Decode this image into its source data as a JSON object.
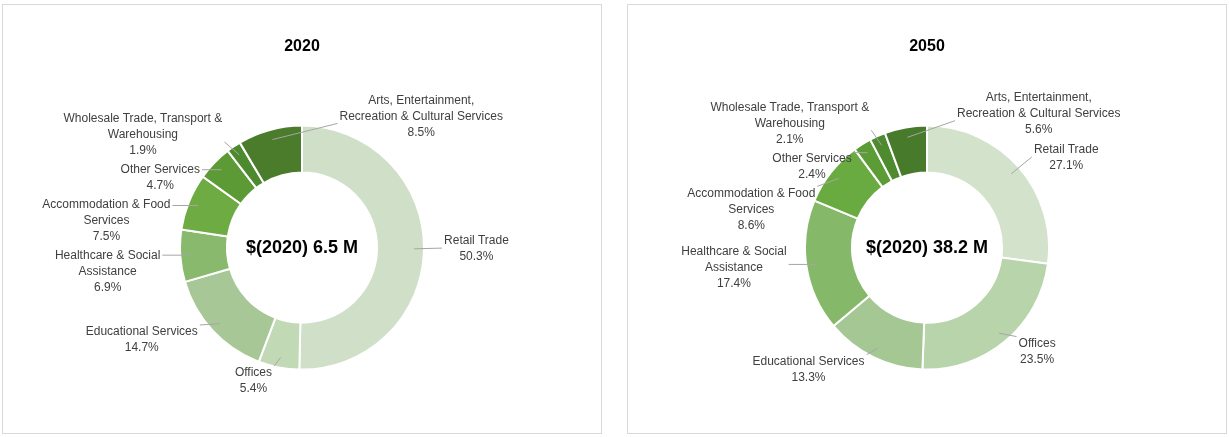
{
  "chart_data": [
    {
      "type": "donut",
      "title": "2020",
      "categories": [
        "Retail Trade",
        "Offices",
        "Educational Services",
        "Healthcare & Social Assistance",
        "Accommodation & Food Services",
        "Other Services",
        "Wholesale Trade, Transport & Warehousing",
        "Arts, Entertainment, Recreation & Cultural Services"
      ],
      "values": [
        50.3,
        5.4,
        14.7,
        6.9,
        7.5,
        4.7,
        1.9,
        8.5
      ],
      "colors": [
        "#d0e0c8",
        "#c2d9b6",
        "#a7c896",
        "#88b96c",
        "#6fab43",
        "#5b9a35",
        "#4d8a2e",
        "#4a7c2c"
      ],
      "value_labels": [
        "50.3%",
        "5.4%",
        "14.7%",
        "6.9%",
        "7.5%",
        "4.7%",
        "1.9%",
        "8.5%"
      ],
      "annotations": [
        "$(2020) 6.5 M"
      ]
    },
    {
      "type": "donut",
      "title": "2050",
      "categories": [
        "Retail Trade",
        "Offices",
        "Educational Services",
        "Healthcare & Social Assistance",
        "Accommodation & Food Services",
        "Other Services",
        "Wholesale Trade, Transport & Warehousing",
        "Arts, Entertainment, Recreation & Cultural Services"
      ],
      "values": [
        27.1,
        23.5,
        13.3,
        17.4,
        8.6,
        2.4,
        2.1,
        5.6
      ],
      "colors": [
        "#d3e2cb",
        "#b8d4aa",
        "#a5c794",
        "#86b86a",
        "#6aab41",
        "#5c9c37",
        "#4e8b2f",
        "#477a2a"
      ],
      "value_labels": [
        "27.1%",
        "23.5%",
        "13.3%",
        "17.4%",
        "8.6%",
        "2.4%",
        "2.1%",
        "5.6%"
      ],
      "annotations": [
        "$(2020) 38.2 M"
      ]
    }
  ]
}
